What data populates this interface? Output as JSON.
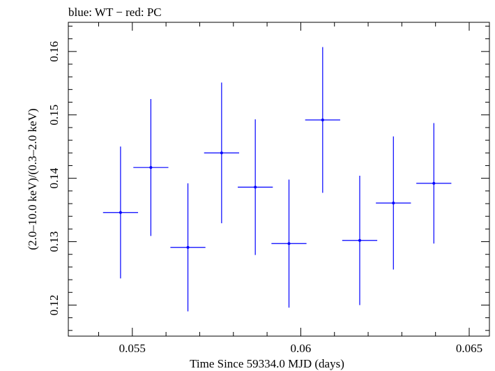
{
  "chart_data": {
    "type": "scatter",
    "title": "blue: WT − red: PC",
    "xlabel": "Time Since 59334.0 MJD (days)",
    "ylabel": "(2.0–10.0 keV)/(0.3–2.0 keV)",
    "xlim": [
      0.0531,
      0.0656
    ],
    "ylim": [
      0.1151,
      0.1646
    ],
    "x_ticks": [
      0.055,
      0.06,
      0.065
    ],
    "x_tick_labels": [
      "0.055",
      "0.06",
      "0.065"
    ],
    "y_ticks": [
      0.12,
      0.13,
      0.14,
      0.15,
      0.16
    ],
    "y_tick_labels": [
      "0.12",
      "0.13",
      "0.14",
      "0.15",
      "0.16"
    ],
    "grid": false,
    "series": [
      {
        "color": "#0000ff",
        "points": [
          {
            "x": 0.05465,
            "xerr": 0.00052,
            "y": 0.1346,
            "yerr": 0.0104
          },
          {
            "x": 0.05555,
            "xerr": 0.00052,
            "y": 0.1417,
            "yerr": 0.0108
          },
          {
            "x": 0.05665,
            "xerr": 0.00052,
            "y": 0.1291,
            "yerr": 0.0101
          },
          {
            "x": 0.05765,
            "xerr": 0.00052,
            "y": 0.144,
            "yerr": 0.0111
          },
          {
            "x": 0.05865,
            "xerr": 0.00052,
            "y": 0.1386,
            "yerr": 0.0107
          },
          {
            "x": 0.05965,
            "xerr": 0.00052,
            "y": 0.1297,
            "yerr": 0.0101
          },
          {
            "x": 0.06065,
            "xerr": 0.00052,
            "y": 0.1492,
            "yerr": 0.0115
          },
          {
            "x": 0.06175,
            "xerr": 0.00052,
            "y": 0.1302,
            "yerr": 0.0102
          },
          {
            "x": 0.06275,
            "xerr": 0.00052,
            "y": 0.1361,
            "yerr": 0.0105
          },
          {
            "x": 0.06395,
            "xerr": 0.00052,
            "y": 0.1392,
            "yerr": 0.0095
          }
        ]
      }
    ]
  }
}
